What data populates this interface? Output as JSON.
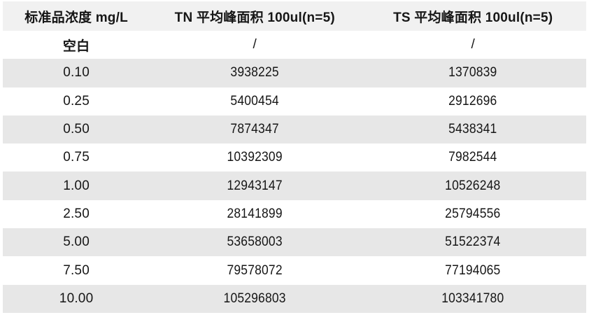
{
  "chart_data": {
    "type": "table",
    "title": "",
    "columns": [
      "标准品浓度 mg/L",
      "TN 平均峰面积 100ul(n=5)",
      "TS 平均峰面积 100ul(n=5)"
    ],
    "rows": [
      [
        "空白",
        "/",
        "/"
      ],
      [
        "0.10",
        "3938225",
        "1370839"
      ],
      [
        "0.25",
        "5400454",
        "2912696"
      ],
      [
        "0.50",
        "7874347",
        "5438341"
      ],
      [
        "0.75",
        "10392309",
        "7982544"
      ],
      [
        "1.00",
        "12943147",
        "10526248"
      ],
      [
        "2.50",
        "28141899",
        "25794556"
      ],
      [
        "5.00",
        "53658003",
        "51522374"
      ],
      [
        "7.50",
        "79578072",
        "77194065"
      ],
      [
        "10.00",
        "105296803",
        "103341780"
      ]
    ]
  },
  "colors": {
    "header_bg": "#f1f1f1",
    "stripe_bg": "#e7e7e7",
    "plain_bg": "#ffffff",
    "text": "#161616"
  }
}
